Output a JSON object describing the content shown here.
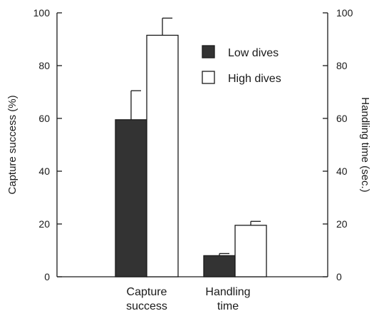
{
  "chart_data": {
    "type": "bar",
    "categories": [
      "Capture success",
      "Handling time"
    ],
    "category_labels": [
      [
        "Capture",
        "success"
      ],
      [
        "Handling",
        "time"
      ]
    ],
    "series": [
      {
        "name": "Low dives",
        "color": "#333333",
        "values": [
          59.5,
          8
        ],
        "errors": [
          11,
          0.8
        ]
      },
      {
        "name": "High dives",
        "color": "#ffffff",
        "values": [
          91.5,
          19.5
        ],
        "errors": [
          6.5,
          1.5
        ]
      }
    ],
    "left_axis": {
      "label": "Capture success (%)",
      "ylim": [
        0,
        100
      ],
      "ticks": [
        0,
        20,
        40,
        60,
        80,
        100
      ]
    },
    "right_axis": {
      "label": "Handling time (sec.)",
      "ylim": [
        0,
        100
      ],
      "ticks": [
        0,
        20,
        40,
        60,
        80,
        100
      ]
    },
    "legend_position": "top-right",
    "grid": false
  }
}
